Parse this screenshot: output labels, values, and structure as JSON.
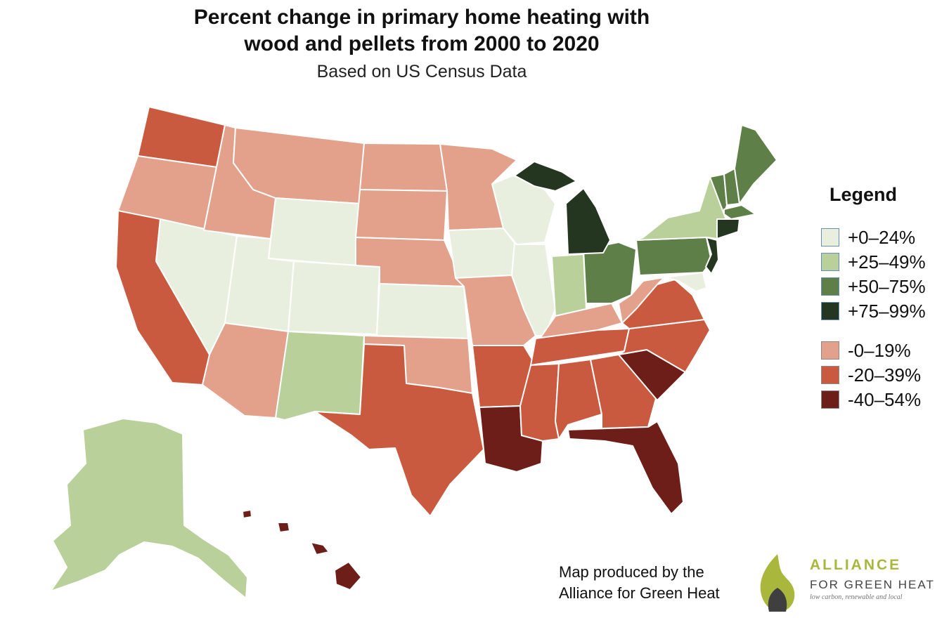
{
  "header": {
    "title_line1": "Percent change in primary home heating with",
    "title_line2": "wood and pellets from 2000 to 2020",
    "subtitle": "Based on US Census Data"
  },
  "legend": {
    "title": "Legend",
    "items": [
      {
        "label": "+0–24%",
        "color": "#e9efdf"
      },
      {
        "label": "+25–49%",
        "color": "#b9d09a"
      },
      {
        "label": "+50–75%",
        "color": "#5f7f48"
      },
      {
        "label": "+75–99%",
        "color": "#243620"
      },
      {
        "label": "-0–19%",
        "color": "#e3a08a"
      },
      {
        "label": "-20–39%",
        "color": "#c95a3f"
      },
      {
        "label": "-40–54%",
        "color": "#6e1e18"
      }
    ]
  },
  "credit": {
    "line1": "Map produced by the",
    "line2": "Alliance for Green Heat"
  },
  "logo": {
    "line1": "ALLIANCE",
    "line2": "FOR GREEN HEAT",
    "tagline": "low carbon, renewable and local"
  }
}
